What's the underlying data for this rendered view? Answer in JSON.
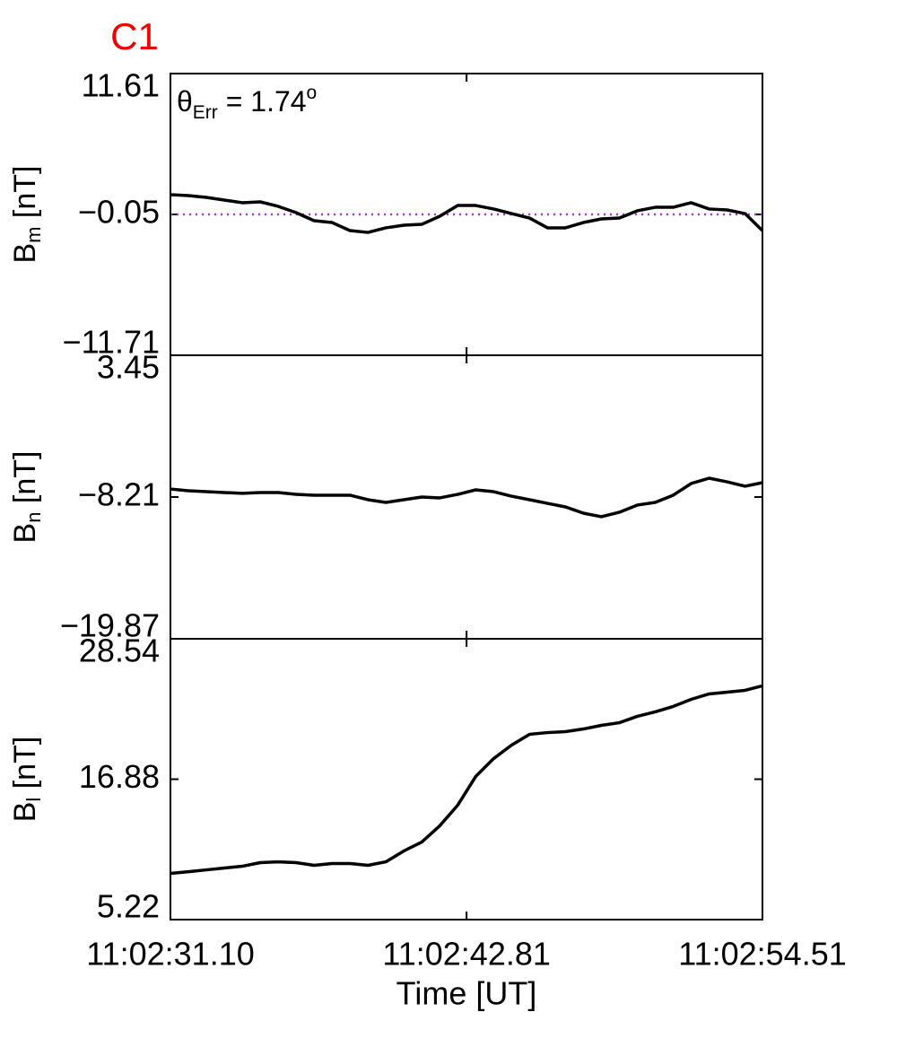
{
  "chart_data": [
    {
      "type": "line",
      "title": "C1",
      "title_color": "#ee0000",
      "annotation": {
        "symbol": "θ",
        "subscript": "Err",
        "text": " =  1.74",
        "superscript": "o"
      },
      "ylabel": {
        "text": "B",
        "subscript": "m",
        "unit": " [nT]"
      },
      "x": [
        31.1,
        31.81,
        32.52,
        33.23,
        33.94,
        34.65,
        35.36,
        36.07,
        36.78,
        37.49,
        38.2,
        38.91,
        39.62,
        40.33,
        41.04,
        41.75,
        42.46,
        43.17,
        43.88,
        44.59,
        45.3,
        46.01,
        46.72,
        47.43,
        48.14,
        48.85,
        49.56,
        50.27,
        50.98,
        51.69,
        52.4,
        53.11,
        53.82,
        54.51
      ],
      "values": [
        1.58,
        1.51,
        1.36,
        1.14,
        0.92,
        0.99,
        0.62,
        0.1,
        -0.57,
        -0.72,
        -1.39,
        -1.54,
        -1.16,
        -0.94,
        -0.87,
        -0.2,
        0.69,
        0.69,
        0.4,
        0.02,
        -0.35,
        -1.16,
        -1.16,
        -0.72,
        -0.42,
        -0.35,
        0.25,
        0.54,
        0.54,
        0.92,
        0.4,
        0.32,
        0.02,
        -1.39
      ],
      "color": "#000000",
      "reference_line": {
        "value": -0.05,
        "color": "#b030e0",
        "style": "dotted"
      },
      "xlim": [
        31.1,
        54.51
      ],
      "ylim": [
        -11.71,
        11.61
      ],
      "yticks": [
        {
          "value": -11.71,
          "label": "−11.71"
        },
        {
          "value": -0.05,
          "label": "−0.05"
        },
        11.61
      ]
    },
    {
      "type": "line",
      "ylabel": {
        "text": "B",
        "subscript": "n",
        "unit": " [nT]"
      },
      "x": [
        31.1,
        31.81,
        32.52,
        33.23,
        33.94,
        34.65,
        35.36,
        36.07,
        36.78,
        37.49,
        38.2,
        38.91,
        39.62,
        40.33,
        41.04,
        41.75,
        42.46,
        43.17,
        43.88,
        44.59,
        45.3,
        46.01,
        46.72,
        47.43,
        48.14,
        48.85,
        49.56,
        50.27,
        50.98,
        51.69,
        52.4,
        53.11,
        53.82,
        54.51
      ],
      "values": [
        -7.55,
        -7.69,
        -7.77,
        -7.84,
        -7.91,
        -7.84,
        -7.84,
        -7.99,
        -8.06,
        -8.06,
        -8.06,
        -8.43,
        -8.65,
        -8.43,
        -8.21,
        -8.28,
        -7.99,
        -7.62,
        -7.77,
        -8.14,
        -8.43,
        -8.73,
        -9.02,
        -9.54,
        -9.83,
        -9.46,
        -8.87,
        -8.65,
        -8.06,
        -7.1,
        -6.66,
        -6.96,
        -7.32,
        -7.03
      ],
      "color": "#000000",
      "xlim": [
        31.1,
        54.51
      ],
      "ylim": [
        -19.87,
        3.45
      ],
      "yticks": [
        {
          "value": -19.87,
          "label": "−19.87"
        },
        {
          "value": -8.21,
          "label": "−8.21"
        },
        3.45
      ]
    },
    {
      "type": "line",
      "ylabel": {
        "text": "B",
        "subscript": "l",
        "unit": " [nT]"
      },
      "xlabel": "Time [UT]",
      "x": [
        31.1,
        31.81,
        32.52,
        33.23,
        33.94,
        34.65,
        35.36,
        36.07,
        36.78,
        37.49,
        38.2,
        38.91,
        39.62,
        40.33,
        41.04,
        41.75,
        42.46,
        43.17,
        43.88,
        44.59,
        45.3,
        46.01,
        46.72,
        47.43,
        48.14,
        48.85,
        49.56,
        50.27,
        50.98,
        51.69,
        52.4,
        53.11,
        53.82,
        54.51
      ],
      "values": [
        9.06,
        9.2,
        9.35,
        9.5,
        9.65,
        9.95,
        10.02,
        9.95,
        9.73,
        9.88,
        9.88,
        9.73,
        10.02,
        10.92,
        11.66,
        13.01,
        14.72,
        17.1,
        18.59,
        19.71,
        20.61,
        20.75,
        20.83,
        21.05,
        21.35,
        21.57,
        22.1,
        22.47,
        22.92,
        23.51,
        23.96,
        24.11,
        24.26,
        24.63
      ],
      "color": "#000000",
      "xlim": [
        31.1,
        54.51
      ],
      "xticks": [
        {
          "value": 31.1,
          "label": "11:02:31.10"
        },
        {
          "value": 42.81,
          "label": "11:02:42.81"
        },
        {
          "value": 54.51,
          "label": "11:02:54.51"
        }
      ],
      "ylim": [
        5.22,
        28.54
      ],
      "yticks": [
        5.22,
        16.88,
        28.54
      ]
    }
  ]
}
